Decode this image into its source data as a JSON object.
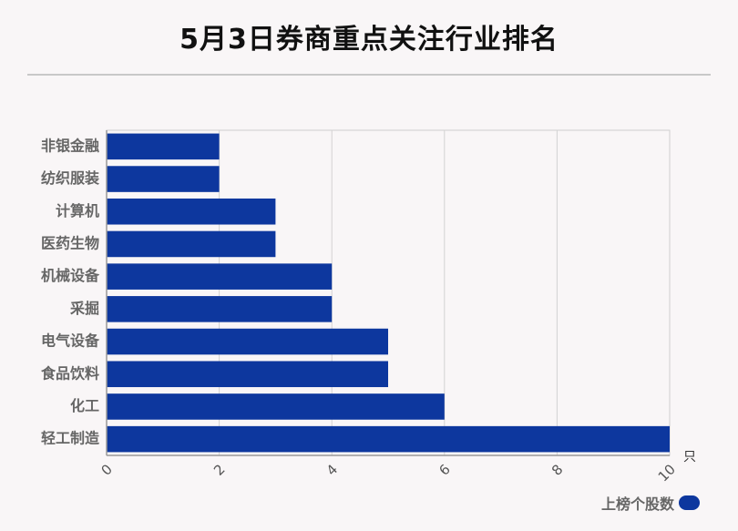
{
  "chart_data": {
    "type": "bar",
    "orientation": "horizontal",
    "title": "5月3日券商重点关注行业排名",
    "categories": [
      "非银金融",
      "纺织服装",
      "计算机",
      "医药生物",
      "机械设备",
      "采掘",
      "电气设备",
      "食品饮料",
      "化工",
      "轻工制造"
    ],
    "series": [
      {
        "name": "上榜个股数",
        "values": [
          2,
          2,
          3,
          3,
          4,
          4,
          5,
          5,
          6,
          10
        ]
      }
    ],
    "x_ticks": [
      "0",
      "2",
      "4",
      "6",
      "8",
      "10"
    ],
    "xlim": [
      0,
      10
    ],
    "x_unit": "只",
    "grid": true,
    "legend_position": "bottom-right",
    "bar_color": "#0d379e"
  }
}
